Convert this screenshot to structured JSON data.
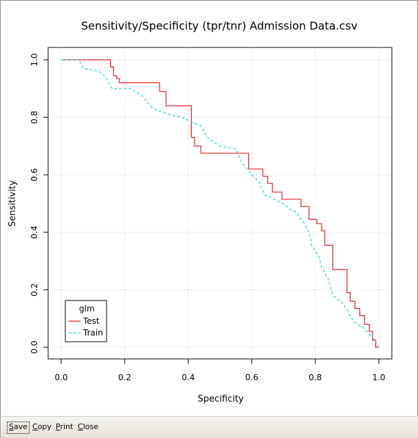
{
  "chart_data": {
    "type": "line",
    "title": "Sensitivity/Specificity (tpr/tnr)  Admission Data.csv",
    "xlabel": "Specificity",
    "ylabel": "Sensitivity",
    "xlim": [
      0,
      1
    ],
    "ylim": [
      0,
      1
    ],
    "xticks": [
      0.0,
      0.2,
      0.4,
      0.6,
      0.8,
      1.0
    ],
    "xtick_labels": [
      "0.0",
      "0.2",
      "0.4",
      "0.6",
      "0.8",
      "1.0"
    ],
    "yticks": [
      0.0,
      0.2,
      0.4,
      0.6,
      0.8,
      1.0
    ],
    "ytick_labels": [
      "0.0",
      "0.2",
      "0.4",
      "0.6",
      "0.8",
      "1.0"
    ],
    "grid": true,
    "legend": {
      "title": "glm",
      "placement": "bottom-left"
    },
    "series": [
      {
        "name": "Test",
        "color": "#dd2222",
        "dash": "solid",
        "x": [
          0.0,
          0.155,
          0.155,
          0.165,
          0.165,
          0.175,
          0.175,
          0.183,
          0.183,
          0.31,
          0.31,
          0.33,
          0.33,
          0.41,
          0.41,
          0.42,
          0.42,
          0.44,
          0.44,
          0.59,
          0.59,
          0.635,
          0.635,
          0.65,
          0.65,
          0.665,
          0.665,
          0.695,
          0.695,
          0.755,
          0.755,
          0.78,
          0.78,
          0.805,
          0.805,
          0.82,
          0.82,
          0.83,
          0.83,
          0.855,
          0.855,
          0.9,
          0.9,
          0.91,
          0.91,
          0.925,
          0.925,
          0.94,
          0.94,
          0.955,
          0.955,
          0.97,
          0.97,
          0.98,
          0.98,
          0.99,
          0.99,
          1.0
        ],
        "y": [
          1.0,
          1.0,
          0.975,
          0.975,
          0.945,
          0.945,
          0.935,
          0.935,
          0.92,
          0.92,
          0.89,
          0.89,
          0.84,
          0.84,
          0.73,
          0.73,
          0.7,
          0.7,
          0.675,
          0.675,
          0.62,
          0.62,
          0.595,
          0.595,
          0.57,
          0.57,
          0.54,
          0.54,
          0.515,
          0.515,
          0.49,
          0.49,
          0.445,
          0.445,
          0.43,
          0.43,
          0.405,
          0.405,
          0.355,
          0.355,
          0.27,
          0.27,
          0.19,
          0.19,
          0.16,
          0.16,
          0.135,
          0.135,
          0.11,
          0.11,
          0.08,
          0.08,
          0.055,
          0.055,
          0.025,
          0.025,
          0.0,
          0.0
        ]
      },
      {
        "name": "Train",
        "color": "#22cccc",
        "dash": "dashed",
        "x": [
          0.0,
          0.055,
          0.07,
          0.12,
          0.14,
          0.15,
          0.16,
          0.22,
          0.25,
          0.29,
          0.34,
          0.38,
          0.42,
          0.44,
          0.46,
          0.5,
          0.55,
          0.57,
          0.6,
          0.62,
          0.64,
          0.66,
          0.68,
          0.7,
          0.72,
          0.74,
          0.75,
          0.76,
          0.78,
          0.79,
          0.81,
          0.82,
          0.84,
          0.855,
          0.88,
          0.9,
          0.915,
          0.93,
          0.95,
          0.975,
          0.99,
          1.0
        ],
        "y": [
          1.0,
          1.0,
          0.97,
          0.96,
          0.94,
          0.92,
          0.9,
          0.9,
          0.88,
          0.83,
          0.81,
          0.8,
          0.78,
          0.77,
          0.73,
          0.7,
          0.69,
          0.64,
          0.6,
          0.58,
          0.53,
          0.52,
          0.51,
          0.5,
          0.48,
          0.47,
          0.45,
          0.44,
          0.4,
          0.35,
          0.32,
          0.28,
          0.24,
          0.18,
          0.16,
          0.13,
          0.1,
          0.08,
          0.07,
          0.04,
          0.02,
          0.0
        ]
      }
    ]
  },
  "toolbar": {
    "buttons": [
      {
        "label": "Save",
        "underline": "S",
        "rest": "ave"
      },
      {
        "label": "Copy",
        "underline": "C",
        "rest": "opy"
      },
      {
        "label": "Print",
        "underline": "P",
        "rest": "rint"
      },
      {
        "label": "Close",
        "underline": "C",
        "rest": "lose"
      }
    ]
  }
}
